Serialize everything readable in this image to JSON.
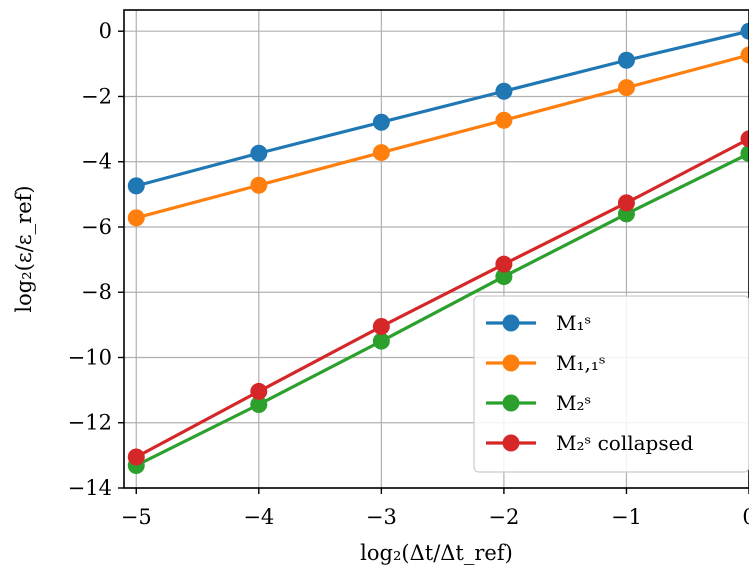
{
  "chart_data": {
    "type": "line",
    "xlabel": "log₂(Δt/Δt_ref)",
    "ylabel": "log₂(ε/ε_ref)",
    "x": [
      -5,
      -4,
      -3,
      -2,
      -1,
      0
    ],
    "xlim": [
      -5.1,
      0
    ],
    "ylim": [
      -14,
      0.65
    ],
    "xticks": [
      -5,
      -4,
      -3,
      -2,
      -1,
      0
    ],
    "yticks": [
      0,
      -2,
      -4,
      -6,
      -8,
      -10,
      -12,
      -14
    ],
    "xtick_labels": [
      "−5",
      "−4",
      "−3",
      "−2",
      "−1",
      "0"
    ],
    "ytick_labels": [
      "0",
      "−2",
      "−4",
      "−6",
      "−8",
      "−10",
      "−12",
      "−14"
    ],
    "grid": true,
    "legend_position": "lower-right",
    "series": [
      {
        "name": "M₁ˢ",
        "color": "#1f77b4",
        "values": [
          -4.74,
          -3.74,
          -2.79,
          -1.84,
          -0.89,
          0.0
        ]
      },
      {
        "name": "M₁,₁ˢ",
        "color": "#ff7f0e",
        "values": [
          -5.72,
          -4.72,
          -3.72,
          -2.73,
          -1.73,
          -0.73
        ]
      },
      {
        "name": "M₂ˢ",
        "color": "#2ca02c",
        "values": [
          -13.31,
          -11.44,
          -9.5,
          -7.52,
          -5.6,
          -3.75
        ]
      },
      {
        "name": "M₂ˢ collapsed",
        "color": "#d62728",
        "values": [
          -13.05,
          -11.04,
          -9.05,
          -7.14,
          -5.26,
          -3.3
        ]
      }
    ]
  }
}
